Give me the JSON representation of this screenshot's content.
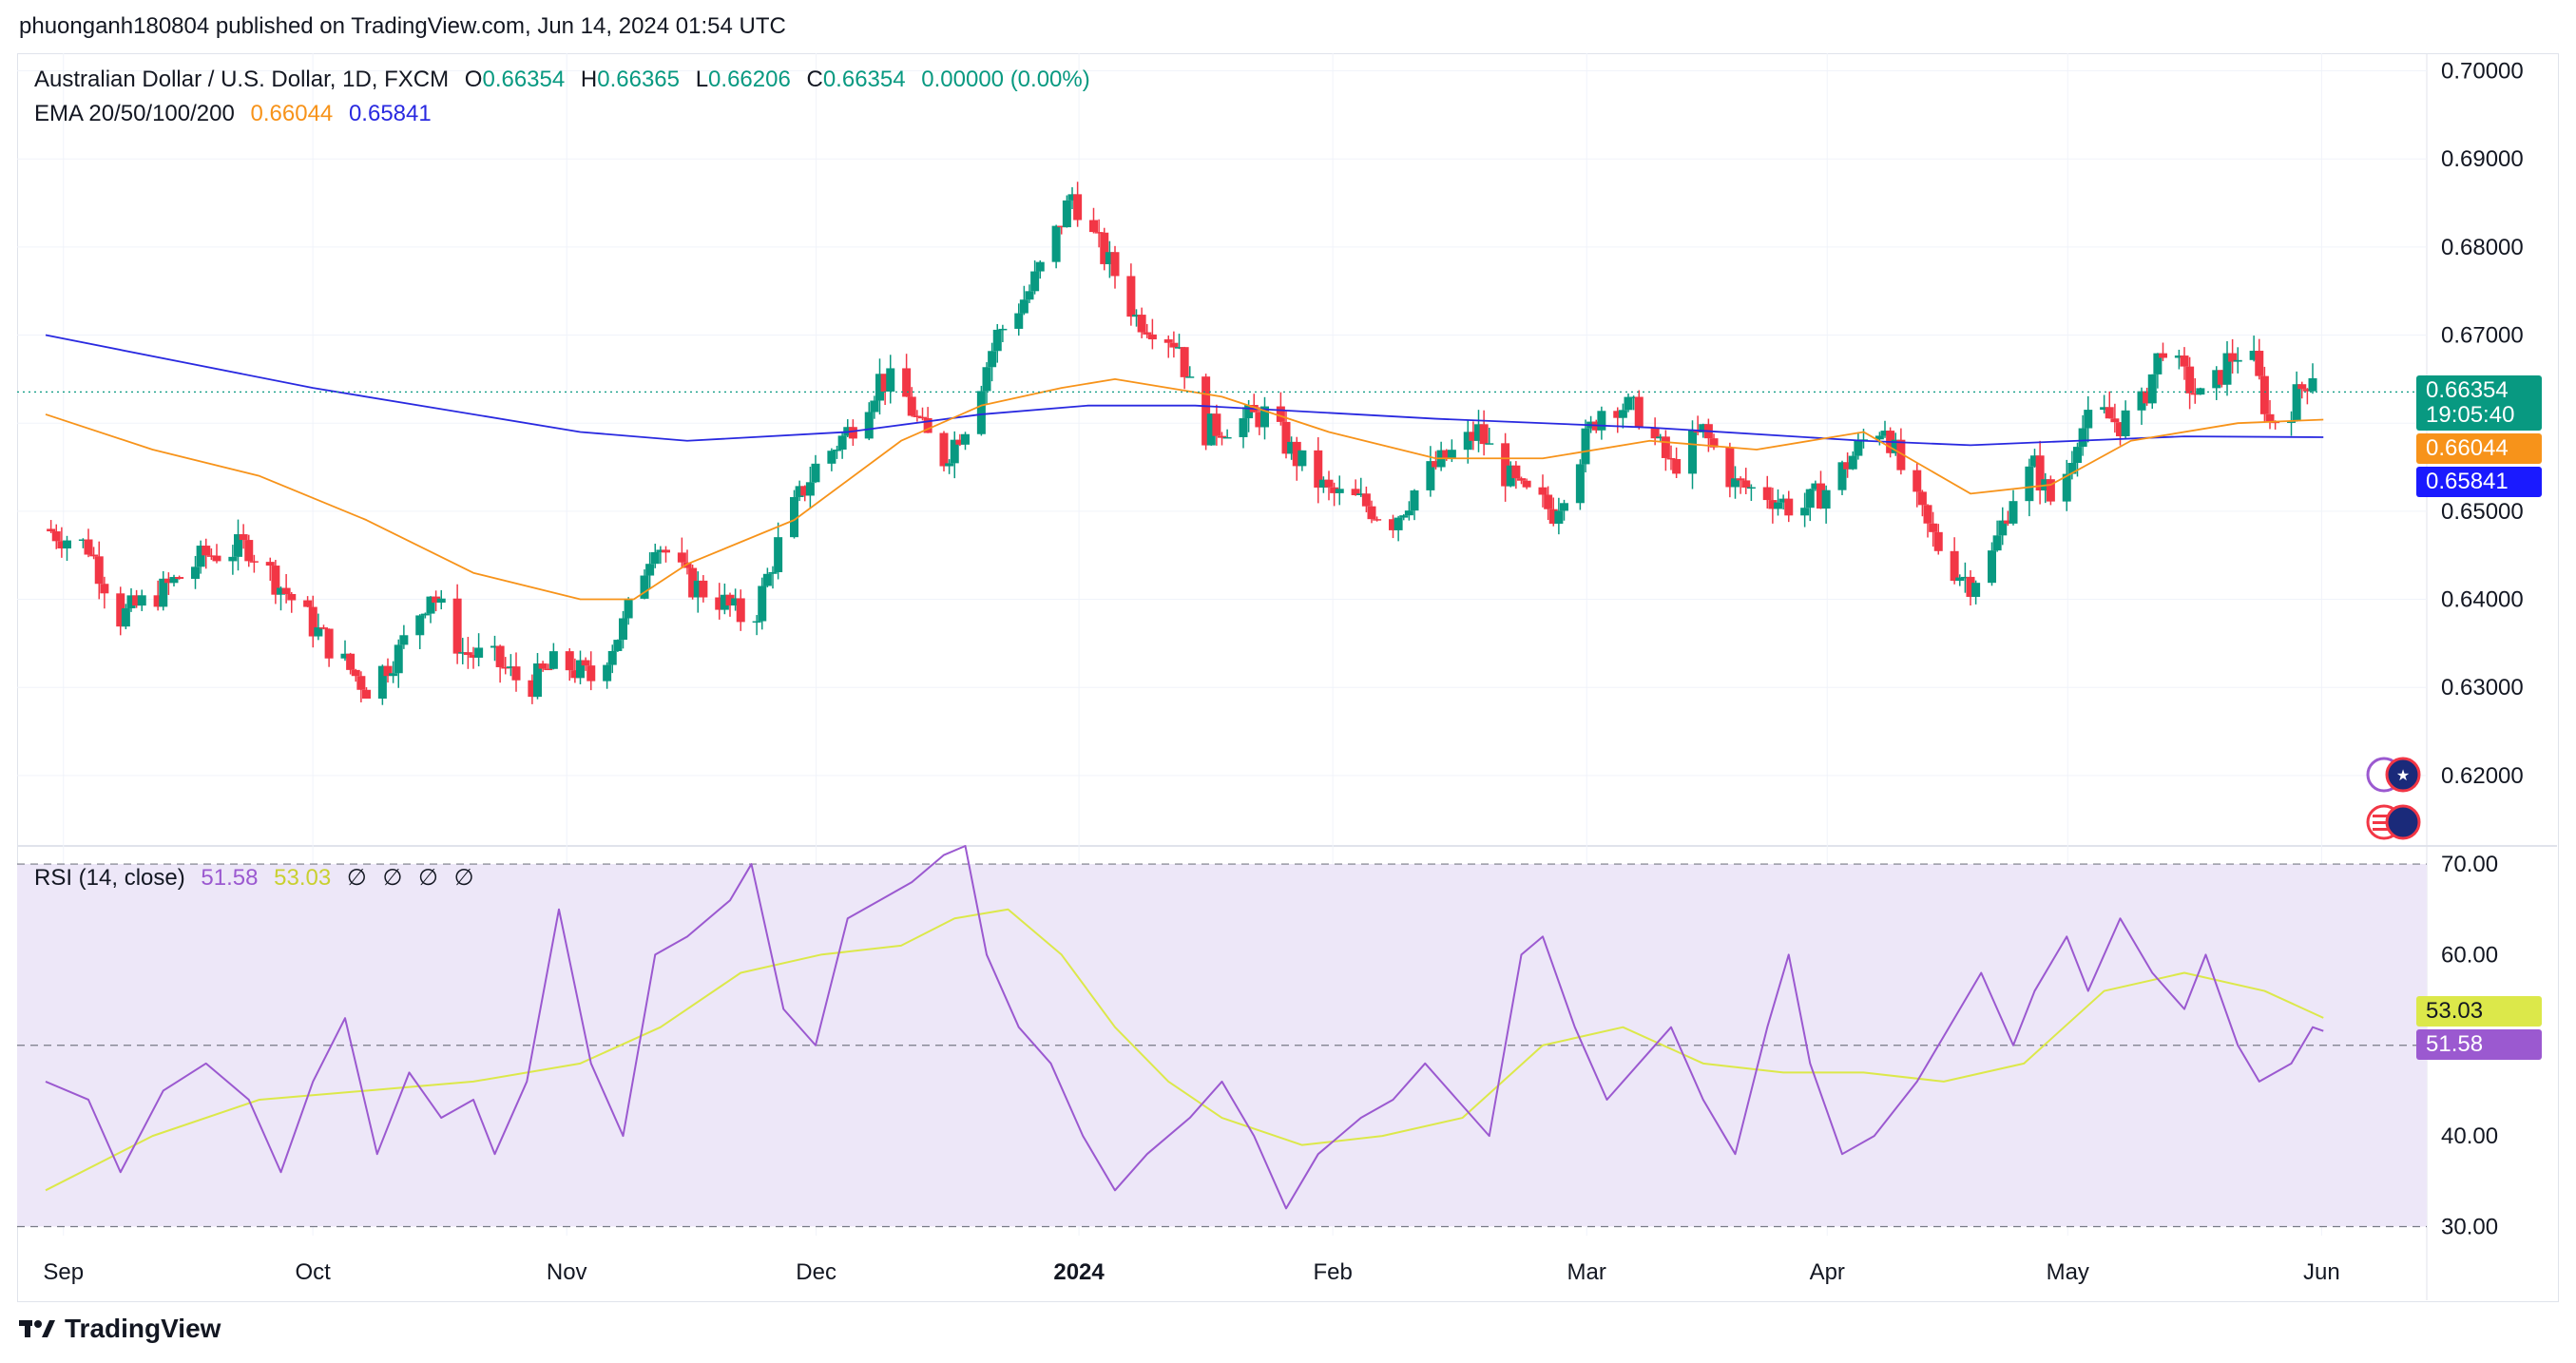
{
  "header": {
    "published_line": "phuonganh180804 published on TradingView.com, Jun 14, 2024 01:54 UTC"
  },
  "legend": {
    "symbol_line": "Australian Dollar / U.S. Dollar, 1D, FXCM",
    "o_label": "O",
    "o_value": "0.66354",
    "h_label": "H",
    "h_value": "0.66365",
    "l_label": "L",
    "l_value": "0.66206",
    "c_label": "C",
    "c_value": "0.66354",
    "change": "0.00000 (0.00%)",
    "ema_label": "EMA 20/50/100/200",
    "ema_val_1": "0.66044",
    "ema_val_2": "0.65841"
  },
  "rsi_legend": {
    "label": "RSI (14, close)",
    "rsi_value": "51.58",
    "ma_value": "53.03",
    "na_marks": [
      "∅",
      "∅",
      "∅",
      "∅"
    ]
  },
  "price_badges": {
    "last": "0.66354",
    "countdown": "19:05:40",
    "ema_orange": "0.66044",
    "ema_blue": "0.65841"
  },
  "rsi_badges": {
    "ma": "53.03",
    "rsi": "51.58"
  },
  "footer": {
    "brand": "TradingView"
  },
  "colors": {
    "up": "#089981",
    "down": "#f23645",
    "ema_orange": "#f7931a",
    "ema_blue": "#2929e0",
    "rsi": "#9b59d0",
    "rsi_ma": "#dce84a",
    "rsi_band": "#ede7f8"
  },
  "chart_data": [
    {
      "type": "candlestick",
      "title": "Australian Dollar / U.S. Dollar, 1D, FXCM",
      "x_ticks": [
        "Sep",
        "Oct",
        "Nov",
        "Dec",
        "2024",
        "Feb",
        "Mar",
        "Apr",
        "May",
        "Jun"
      ],
      "y_ticks": [
        "0.70000",
        "0.69000",
        "0.68000",
        "0.67000",
        "0.66000",
        "0.65000",
        "0.64000",
        "0.63000",
        "0.62000"
      ],
      "ylim": [
        0.612,
        0.702
      ],
      "close_path": [
        [
          0,
          0.648
        ],
        [
          8,
          0.646
        ],
        [
          14,
          0.638
        ],
        [
          22,
          0.641
        ],
        [
          30,
          0.645
        ],
        [
          38,
          0.646
        ],
        [
          46,
          0.64
        ],
        [
          54,
          0.634
        ],
        [
          60,
          0.63
        ],
        [
          66,
          0.634
        ],
        [
          72,
          0.641
        ],
        [
          78,
          0.634
        ],
        [
          84,
          0.633
        ],
        [
          90,
          0.63
        ],
        [
          96,
          0.633
        ],
        [
          102,
          0.631
        ],
        [
          108,
          0.637
        ],
        [
          114,
          0.647
        ],
        [
          120,
          0.642
        ],
        [
          126,
          0.64
        ],
        [
          132,
          0.637
        ],
        [
          138,
          0.648
        ],
        [
          144,
          0.655
        ],
        [
          150,
          0.659
        ],
        [
          156,
          0.665
        ],
        [
          160,
          0.664
        ],
        [
          164,
          0.659
        ],
        [
          168,
          0.656
        ],
        [
          172,
          0.66
        ],
        [
          178,
          0.67
        ],
        [
          184,
          0.675
        ],
        [
          188,
          0.68
        ],
        [
          192,
          0.686
        ],
        [
          196,
          0.681
        ],
        [
          200,
          0.677
        ],
        [
          204,
          0.672
        ],
        [
          208,
          0.671
        ],
        [
          212,
          0.669
        ],
        [
          216,
          0.659
        ],
        [
          222,
          0.66
        ],
        [
          228,
          0.661
        ],
        [
          234,
          0.656
        ],
        [
          240,
          0.652
        ],
        [
          246,
          0.651
        ],
        [
          252,
          0.649
        ],
        [
          258,
          0.654
        ],
        [
          264,
          0.657
        ],
        [
          268,
          0.659
        ],
        [
          272,
          0.655
        ],
        [
          276,
          0.652
        ],
        [
          282,
          0.65
        ],
        [
          288,
          0.658
        ],
        [
          292,
          0.663
        ],
        [
          298,
          0.661
        ],
        [
          304,
          0.655
        ],
        [
          310,
          0.659
        ],
        [
          316,
          0.653
        ],
        [
          322,
          0.652
        ],
        [
          328,
          0.65
        ],
        [
          334,
          0.653
        ],
        [
          340,
          0.658
        ],
        [
          344,
          0.66
        ],
        [
          348,
          0.653
        ],
        [
          352,
          0.648
        ],
        [
          356,
          0.644
        ],
        [
          360,
          0.642
        ],
        [
          364,
          0.645
        ],
        [
          368,
          0.652
        ],
        [
          372,
          0.655
        ],
        [
          376,
          0.65
        ],
        [
          380,
          0.659
        ],
        [
          384,
          0.661
        ],
        [
          388,
          0.66
        ],
        [
          392,
          0.662
        ],
        [
          396,
          0.669
        ],
        [
          400,
          0.665
        ],
        [
          404,
          0.662
        ],
        [
          408,
          0.667
        ],
        [
          412,
          0.669
        ],
        [
          416,
          0.66
        ],
        [
          420,
          0.662
        ],
        [
          424,
          0.666
        ],
        [
          426,
          0.6635
        ]
      ],
      "ema_orange_path": [
        [
          0,
          0.661
        ],
        [
          20,
          0.657
        ],
        [
          40,
          0.654
        ],
        [
          60,
          0.649
        ],
        [
          80,
          0.643
        ],
        [
          100,
          0.64
        ],
        [
          110,
          0.64
        ],
        [
          120,
          0.644
        ],
        [
          140,
          0.649
        ],
        [
          160,
          0.658
        ],
        [
          175,
          0.662
        ],
        [
          190,
          0.664
        ],
        [
          200,
          0.665
        ],
        [
          210,
          0.664
        ],
        [
          220,
          0.663
        ],
        [
          240,
          0.659
        ],
        [
          260,
          0.656
        ],
        [
          280,
          0.656
        ],
        [
          300,
          0.658
        ],
        [
          320,
          0.657
        ],
        [
          340,
          0.659
        ],
        [
          360,
          0.652
        ],
        [
          375,
          0.653
        ],
        [
          390,
          0.658
        ],
        [
          410,
          0.66
        ],
        [
          426,
          0.6604
        ]
      ],
      "ema_blue_path": [
        [
          0,
          0.67
        ],
        [
          50,
          0.664
        ],
        [
          100,
          0.659
        ],
        [
          120,
          0.658
        ],
        [
          150,
          0.659
        ],
        [
          175,
          0.661
        ],
        [
          195,
          0.662
        ],
        [
          215,
          0.662
        ],
        [
          260,
          0.6605
        ],
        [
          300,
          0.6595
        ],
        [
          340,
          0.658
        ],
        [
          360,
          0.6575
        ],
        [
          380,
          0.658
        ],
        [
          400,
          0.6585
        ],
        [
          426,
          0.6584
        ]
      ]
    },
    {
      "type": "line",
      "title": "RSI (14, close)",
      "y_ticks": [
        "70.00",
        "60.00",
        "50.00",
        "40.00",
        "30.00"
      ],
      "ylim": [
        29,
        72
      ],
      "bands": [
        30,
        50,
        70
      ],
      "series": [
        {
          "name": "RSI",
          "points": [
            [
              0,
              46
            ],
            [
              8,
              44
            ],
            [
              14,
              36
            ],
            [
              22,
              45
            ],
            [
              30,
              48
            ],
            [
              38,
              44
            ],
            [
              44,
              36
            ],
            [
              50,
              46
            ],
            [
              56,
              53
            ],
            [
              62,
              38
            ],
            [
              68,
              47
            ],
            [
              74,
              42
            ],
            [
              80,
              44
            ],
            [
              84,
              38
            ],
            [
              90,
              46
            ],
            [
              96,
              65
            ],
            [
              102,
              48
            ],
            [
              108,
              40
            ],
            [
              114,
              60
            ],
            [
              120,
              62
            ],
            [
              128,
              66
            ],
            [
              132,
              70
            ],
            [
              138,
              54
            ],
            [
              144,
              50
            ],
            [
              150,
              64
            ],
            [
              156,
              66
            ],
            [
              162,
              68
            ],
            [
              168,
              71
            ],
            [
              172,
              72
            ],
            [
              176,
              60
            ],
            [
              182,
              52
            ],
            [
              188,
              48
            ],
            [
              194,
              40
            ],
            [
              200,
              34
            ],
            [
              206,
              38
            ],
            [
              214,
              42
            ],
            [
              220,
              46
            ],
            [
              226,
              40
            ],
            [
              232,
              32
            ],
            [
              238,
              38
            ],
            [
              246,
              42
            ],
            [
              252,
              44
            ],
            [
              258,
              48
            ],
            [
              264,
              44
            ],
            [
              270,
              40
            ],
            [
              276,
              60
            ],
            [
              280,
              62
            ],
            [
              286,
              52
            ],
            [
              292,
              44
            ],
            [
              298,
              48
            ],
            [
              304,
              52
            ],
            [
              310,
              44
            ],
            [
              316,
              38
            ],
            [
              322,
              52
            ],
            [
              326,
              60
            ],
            [
              330,
              48
            ],
            [
              336,
              38
            ],
            [
              342,
              40
            ],
            [
              350,
              46
            ],
            [
              356,
              52
            ],
            [
              362,
              58
            ],
            [
              368,
              50
            ],
            [
              372,
              56
            ],
            [
              378,
              62
            ],
            [
              382,
              56
            ],
            [
              388,
              64
            ],
            [
              394,
              58
            ],
            [
              400,
              54
            ],
            [
              404,
              60
            ],
            [
              410,
              50
            ],
            [
              414,
              46
            ],
            [
              420,
              48
            ],
            [
              424,
              52
            ],
            [
              426,
              51.58
            ]
          ]
        },
        {
          "name": "RSI MA",
          "points": [
            [
              0,
              34
            ],
            [
              20,
              40
            ],
            [
              40,
              44
            ],
            [
              60,
              45
            ],
            [
              80,
              46
            ],
            [
              100,
              48
            ],
            [
              115,
              52
            ],
            [
              130,
              58
            ],
            [
              145,
              60
            ],
            [
              160,
              61
            ],
            [
              170,
              64
            ],
            [
              180,
              65
            ],
            [
              190,
              60
            ],
            [
              200,
              52
            ],
            [
              210,
              46
            ],
            [
              220,
              42
            ],
            [
              235,
              39
            ],
            [
              250,
              40
            ],
            [
              265,
              42
            ],
            [
              280,
              50
            ],
            [
              295,
              52
            ],
            [
              310,
              48
            ],
            [
              325,
              47
            ],
            [
              340,
              47
            ],
            [
              355,
              46
            ],
            [
              370,
              48
            ],
            [
              385,
              56
            ],
            [
              400,
              58
            ],
            [
              415,
              56
            ],
            [
              426,
              53.03
            ]
          ]
        }
      ]
    }
  ]
}
